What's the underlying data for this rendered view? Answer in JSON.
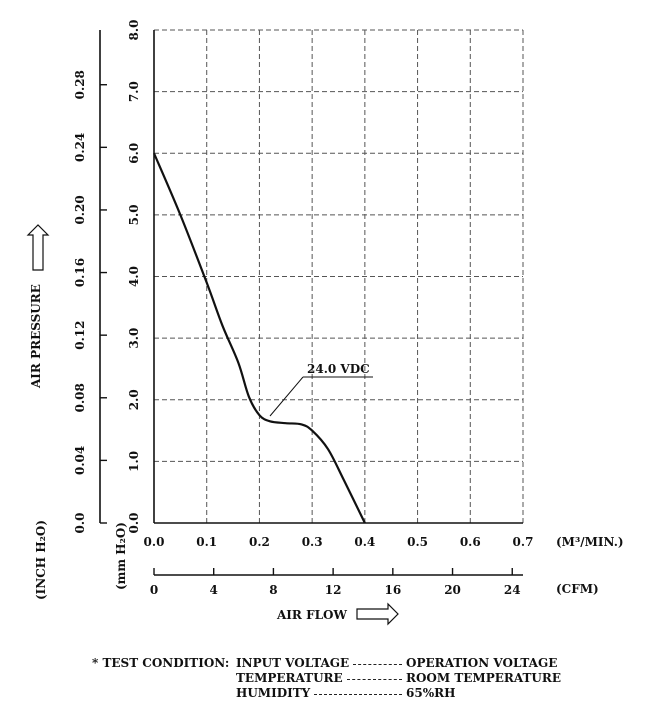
{
  "chart_data": {
    "type": "line",
    "x_primary": {
      "label": "(M³/MIN.)",
      "ticks": [
        "0.0",
        "0.1",
        "0.2",
        "0.3",
        "0.4",
        "0.5",
        "0.6",
        "0.7"
      ],
      "range": [
        0,
        0.7
      ]
    },
    "x_secondary": {
      "label": "(CFM)",
      "ticks": [
        "0",
        "4",
        "8",
        "12",
        "16",
        "20",
        "24"
      ]
    },
    "y_primary": {
      "label": "(mm H₂O)",
      "ticks": [
        "0.0",
        "1.0",
        "2.0",
        "3.0",
        "4.0",
        "5.0",
        "6.0",
        "7.0",
        "8.0"
      ],
      "range": [
        0,
        8
      ]
    },
    "y_secondary": {
      "label": "(INCH H₂O)",
      "ticks": [
        "0.0",
        "0.04",
        "0.08",
        "0.12",
        "0.16",
        "0.20",
        "0.24",
        "0.28"
      ]
    },
    "xlabel": "AIR FLOW",
    "ylabel": "AIR PRESSURE",
    "grid": true,
    "series": [
      {
        "name": "24.0 VDC",
        "x": [
          0.0,
          0.05,
          0.1,
          0.13,
          0.16,
          0.18,
          0.2,
          0.22,
          0.25,
          0.28,
          0.3,
          0.33,
          0.36,
          0.4
        ],
        "y": [
          6.0,
          5.0,
          3.9,
          3.2,
          2.6,
          2.05,
          1.75,
          1.65,
          1.62,
          1.6,
          1.5,
          1.2,
          0.7,
          0.0
        ]
      }
    ],
    "annotation": {
      "text": "24.0 VDC"
    }
  },
  "test_condition": {
    "title": "* TEST CONDITION:",
    "rows": [
      {
        "label": "INPUT VOLTAGE",
        "value": "OPERATION VOLTAGE"
      },
      {
        "label": "TEMPERATURE",
        "value": "ROOM TEMPERATURE"
      },
      {
        "label": "HUMIDITY",
        "value": "65%RH"
      }
    ]
  }
}
